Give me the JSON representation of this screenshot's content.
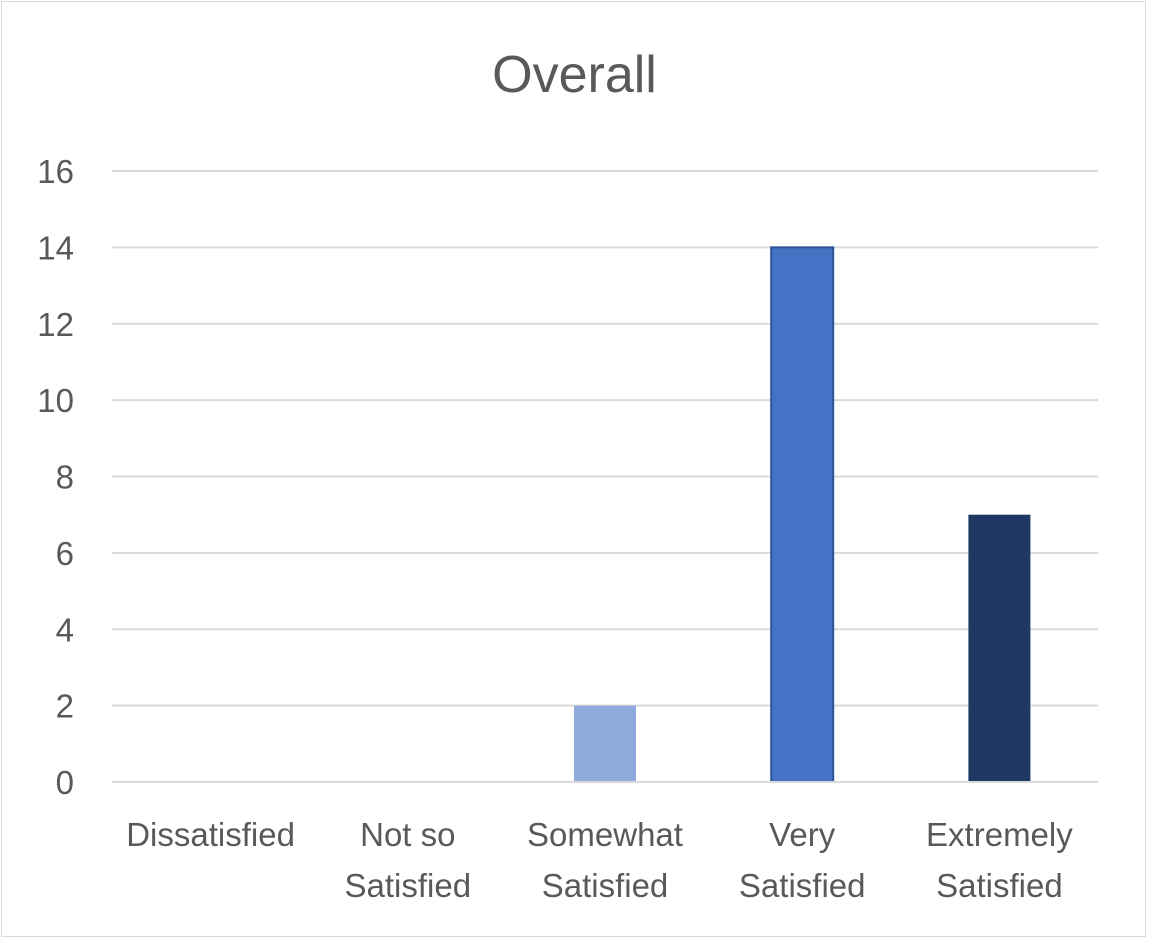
{
  "chart_data": {
    "type": "bar",
    "title": "Overall",
    "xlabel": "",
    "ylabel": "",
    "categories": [
      [
        "Dissatisfied"
      ],
      [
        "Not so",
        "Satisfied"
      ],
      [
        "Somewhat",
        "Satisfied"
      ],
      [
        "Very",
        "Satisfied"
      ],
      [
        "Extremely",
        "Satisfied"
      ]
    ],
    "values": [
      0,
      0,
      2,
      14,
      7
    ],
    "colors": [
      "#8faadc",
      "#8faadc",
      "#8faadc",
      "#4472c4",
      "#203864"
    ],
    "bar_borders": [
      "none",
      "none",
      "none",
      "#2f5597",
      "none"
    ],
    "ylim": [
      0,
      16
    ],
    "yticks": [
      0,
      2,
      4,
      6,
      8,
      10,
      12,
      14,
      16
    ],
    "grid": true,
    "legend": "none"
  }
}
